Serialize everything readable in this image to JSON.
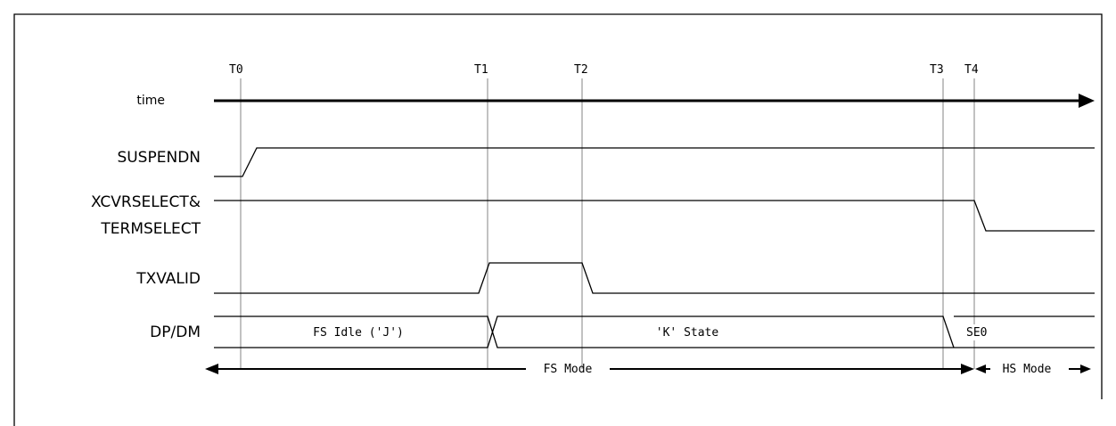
{
  "markers": [
    "T0",
    "T1",
    "T2",
    "T3",
    "T4"
  ],
  "signals": {
    "time": "time",
    "suspendn": "SUSPENDN",
    "xcvr_line1": "XCVRSELECT&",
    "xcvr_line2": "TERMSELECT",
    "txvalid": "TXVALID",
    "dpdm": "DP/DM"
  },
  "states": {
    "fs_idle": "FS Idle ('J')",
    "k_state": "'K' State",
    "se0": "SE0"
  },
  "modes": {
    "fs": "FS Mode",
    "hs": "HS Mode"
  }
}
